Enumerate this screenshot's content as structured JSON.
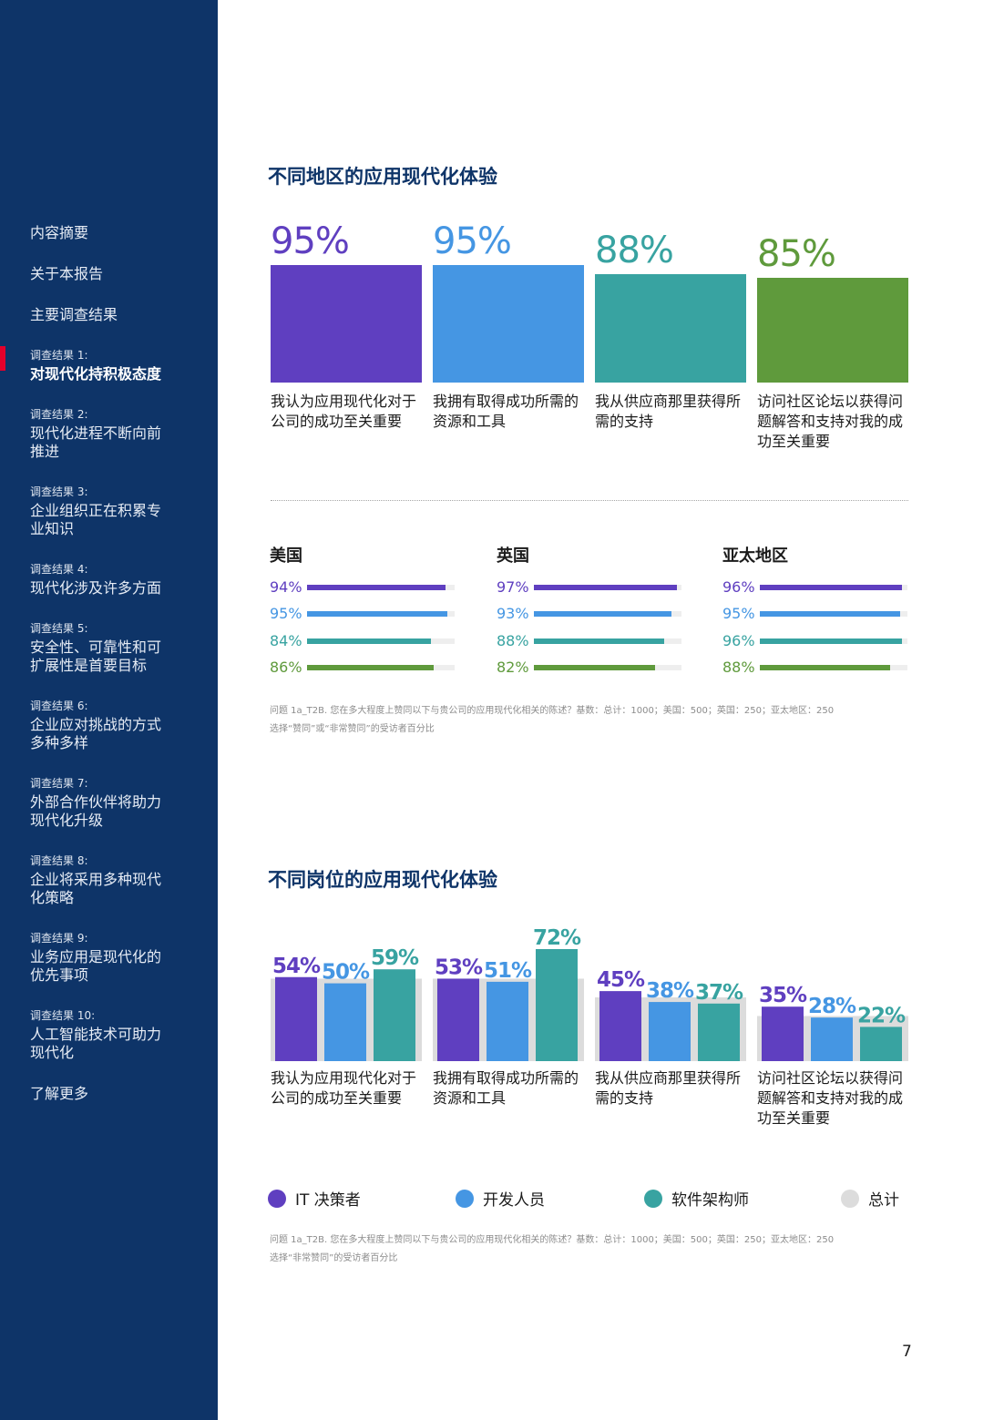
{
  "sidebar": {
    "simple_items": [
      {
        "label": "内容摘要"
      },
      {
        "label": "关于本报告"
      },
      {
        "label": "主要调查结果"
      }
    ],
    "findings": [
      {
        "kicker": "调查结果 1:",
        "title": "对现代化持积极态度"
      },
      {
        "kicker": "调查结果 2:",
        "title": "现代化进程不断向前推进"
      },
      {
        "kicker": "调查结果 3:",
        "title": "企业组织正在积累专业知识"
      },
      {
        "kicker": "调查结果 4:",
        "title": "现代化涉及许多方面"
      },
      {
        "kicker": "调查结果 5:",
        "title": "安全性、可靠性和可扩展性是首要目标"
      },
      {
        "kicker": "调查结果 6:",
        "title": "企业应对挑战的方式多种多样"
      },
      {
        "kicker": "调查结果 7:",
        "title": "外部合作伙伴将助力现代化升级"
      },
      {
        "kicker": "调查结果 8:",
        "title": "企业将采用多种现代化策略"
      },
      {
        "kicker": "调查结果 9:",
        "title": "业务应用是现代化的优先事项"
      },
      {
        "kicker": "调查结果 10:",
        "title": "人工智能技术可助力现代化"
      }
    ],
    "learn_more": "了解更多"
  },
  "colors": {
    "purple": "#5f3fc0",
    "blue": "#4596e3",
    "teal": "#38a3a1",
    "green": "#5f9a3c",
    "gray": "#dcdcdc",
    "navy": "#0e3468"
  },
  "region_section": {
    "title": "不同地区的应用现代化体验",
    "bars": [
      {
        "pct": "95%",
        "value": 95,
        "label": "我认为应用现代化对于公司的成功至关重要",
        "color": "#5f3fc0"
      },
      {
        "pct": "95%",
        "value": 95,
        "label": "我拥有取得成功所需的资源和工具",
        "color": "#4596e3"
      },
      {
        "pct": "88%",
        "value": 88,
        "label": "我从供应商那里获得所需的支持",
        "color": "#38a3a1"
      },
      {
        "pct": "85%",
        "value": 85,
        "label": "访问社区论坛以获得问题解答和支持对我的成功至关重要",
        "color": "#5f9a3c"
      }
    ],
    "regions": [
      {
        "name": "美国",
        "rows": [
          {
            "pct": "94%",
            "value": 94,
            "color": "#5f3fc0"
          },
          {
            "pct": "95%",
            "value": 95,
            "color": "#4596e3"
          },
          {
            "pct": "84%",
            "value": 84,
            "color": "#38a3a1"
          },
          {
            "pct": "86%",
            "value": 86,
            "color": "#5f9a3c"
          }
        ]
      },
      {
        "name": "英国",
        "rows": [
          {
            "pct": "97%",
            "value": 97,
            "color": "#5f3fc0"
          },
          {
            "pct": "93%",
            "value": 93,
            "color": "#4596e3"
          },
          {
            "pct": "88%",
            "value": 88,
            "color": "#38a3a1"
          },
          {
            "pct": "82%",
            "value": 82,
            "color": "#5f9a3c"
          }
        ]
      },
      {
        "name": "亚太地区",
        "rows": [
          {
            "pct": "96%",
            "value": 96,
            "color": "#5f3fc0"
          },
          {
            "pct": "95%",
            "value": 95,
            "color": "#4596e3"
          },
          {
            "pct": "96%",
            "value": 96,
            "color": "#38a3a1"
          },
          {
            "pct": "88%",
            "value": 88,
            "color": "#5f9a3c"
          }
        ]
      }
    ],
    "footnote_line1": "问题 1a_T2B. 您在多大程度上赞同以下与贵公司的应用现代化相关的陈述？基数：总计：1000；美国：500；英国：250；亚太地区：250",
    "footnote_line2": "选择“赞同”或“非常赞同”的受访者百分比"
  },
  "role_section": {
    "title": "不同岗位的应用现代化体验",
    "footnote_line1": "问题 1a_T2B. 您在多大程度上赞同以下与贵公司的应用现代化相关的陈述？基数：总计：1000；美国：500；英国：250；亚太地区：250",
    "footnote_line2": "选择“非常赞同”的受访者百分比"
  },
  "chart_data": {
    "type": "bar",
    "categories": [
      "我认为应用现代化对于公司的成功至关重要",
      "我拥有取得成功所需的资源和工具",
      "我从供应商那里获得所需的支持",
      "访问社区论坛以获得问题解答和支持对我的成功至关重要"
    ],
    "series": [
      {
        "name": "IT 决策者",
        "values": [
          54,
          53,
          45,
          35
        ],
        "color": "#5f3fc0"
      },
      {
        "name": "开发人员",
        "values": [
          50,
          51,
          38,
          28
        ],
        "color": "#4596e3"
      },
      {
        "name": "软件架构师",
        "values": [
          59,
          72,
          37,
          22
        ],
        "color": "#38a3a1"
      },
      {
        "name": "总计",
        "values": [
          53,
          53,
          41,
          29
        ],
        "color": "#dcdcdc"
      }
    ],
    "legend_position": "bottom",
    "grid": false
  },
  "page_number": "7"
}
